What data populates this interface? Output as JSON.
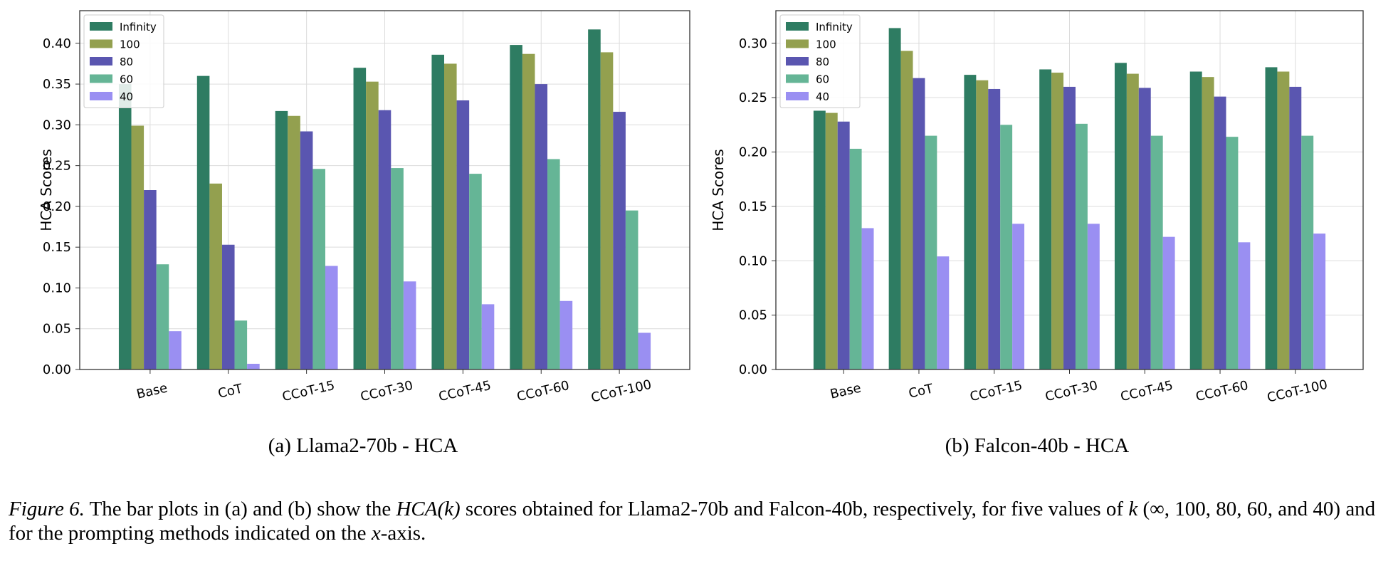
{
  "colors": {
    "Infinity": "#2e7c62",
    "100": "#93a04f",
    "80": "#5a56b0",
    "60": "#65b596",
    "40": "#9a8ff2",
    "grid": "#dcdcdc",
    "axis": "#333333"
  },
  "chart_data": [
    {
      "type": "bar",
      "id": "a",
      "caption": "(a) Llama2-70b - HCA",
      "ylabel": "HCA Scores",
      "xlabel": "",
      "ylim": [
        0,
        0.44
      ],
      "yticks": [
        "0.00",
        "0.05",
        "0.10",
        "0.15",
        "0.20",
        "0.25",
        "0.30",
        "0.35",
        "0.40"
      ],
      "grid": true,
      "legend_position": "top-left",
      "categories": [
        "Base",
        "CoT",
        "CCoT-15",
        "CCoT-30",
        "CCoT-45",
        "CCoT-60",
        "CCoT-100"
      ],
      "series": [
        {
          "name": "Infinity",
          "values": [
            0.35,
            0.36,
            0.317,
            0.37,
            0.386,
            0.398,
            0.417
          ]
        },
        {
          "name": "100",
          "values": [
            0.299,
            0.228,
            0.311,
            0.353,
            0.375,
            0.387,
            0.389
          ]
        },
        {
          "name": "80",
          "values": [
            0.22,
            0.153,
            0.292,
            0.318,
            0.33,
            0.35,
            0.316
          ]
        },
        {
          "name": "60",
          "values": [
            0.129,
            0.06,
            0.246,
            0.247,
            0.24,
            0.258,
            0.195
          ]
        },
        {
          "name": "40",
          "values": [
            0.047,
            0.007,
            0.127,
            0.108,
            0.08,
            0.084,
            0.045
          ]
        }
      ]
    },
    {
      "type": "bar",
      "id": "b",
      "caption": "(b) Falcon-40b - HCA",
      "ylabel": "HCA Scores",
      "xlabel": "",
      "ylim": [
        0,
        0.33
      ],
      "yticks": [
        "0.00",
        "0.05",
        "0.10",
        "0.15",
        "0.20",
        "0.25",
        "0.30"
      ],
      "grid": true,
      "legend_position": "top-left",
      "categories": [
        "Base",
        "CoT",
        "CCoT-15",
        "CCoT-30",
        "CCoT-45",
        "CCoT-60",
        "CCoT-100"
      ],
      "series": [
        {
          "name": "Infinity",
          "values": [
            0.238,
            0.314,
            0.271,
            0.276,
            0.282,
            0.274,
            0.278
          ]
        },
        {
          "name": "100",
          "values": [
            0.236,
            0.293,
            0.266,
            0.273,
            0.272,
            0.269,
            0.274
          ]
        },
        {
          "name": "80",
          "values": [
            0.228,
            0.268,
            0.258,
            0.26,
            0.259,
            0.251,
            0.26
          ]
        },
        {
          "name": "60",
          "values": [
            0.203,
            0.215,
            0.225,
            0.226,
            0.215,
            0.214,
            0.215
          ]
        },
        {
          "name": "40",
          "values": [
            0.13,
            0.104,
            0.134,
            0.134,
            0.122,
            0.117,
            0.125
          ]
        }
      ]
    }
  ],
  "caption": {
    "figure_label": "Figure 6.",
    "text_1": " The bar plots in (a) and (b) show the ",
    "math_hca": "HCA(k)",
    "text_2": " scores obtained for Llama2-70b and Falcon-40b, respectively, for five values of ",
    "math_k": "k",
    "text_3": " (∞, 100, 80, 60, and 40) and for the prompting methods indicated on the ",
    "math_x": "x",
    "text_4": "-axis."
  }
}
